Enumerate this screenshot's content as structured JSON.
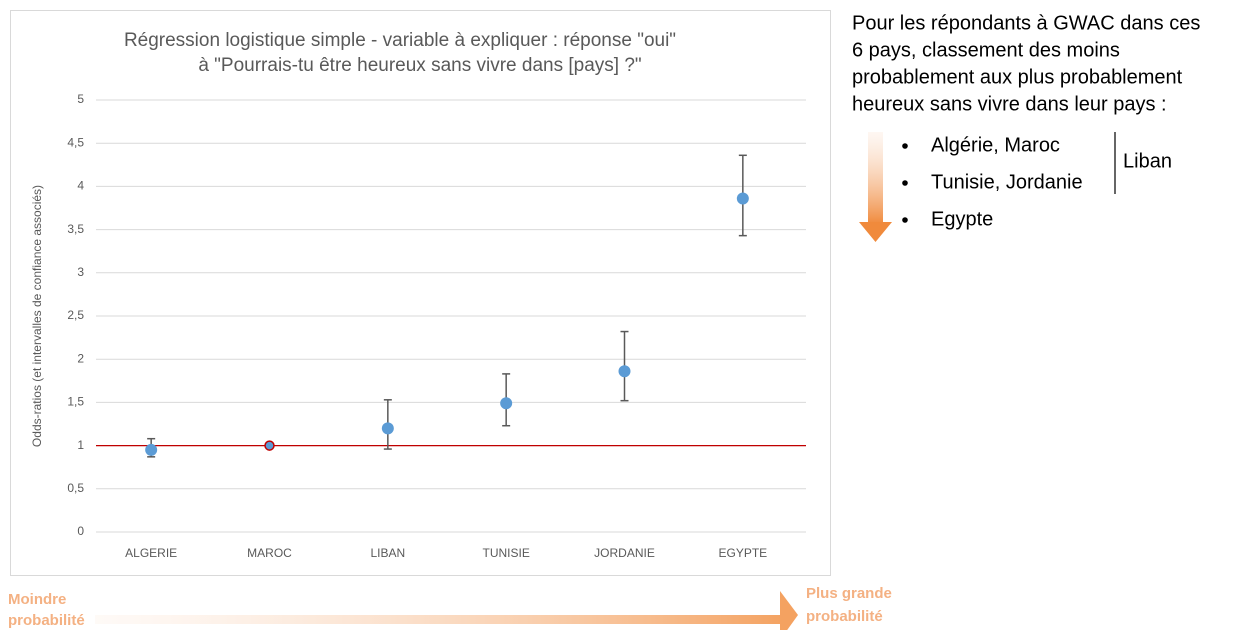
{
  "chart_data": {
    "type": "errorbar",
    "title": [
      "Régression logistique simple - variable à expliquer : réponse \"oui\"",
      "à \"Pourrais-tu être heureux sans vivre dans [pays] ?\""
    ],
    "y_label": "Odds-ratios (et intervalles de confiance associés)",
    "categories": [
      "ALGERIE",
      "MAROC",
      "LIBAN",
      "TUNISIE",
      "JORDANIE",
      "EGYPTE"
    ],
    "values": [
      0.95,
      1,
      1.2,
      1.49,
      1.86,
      3.86
    ],
    "lower": [
      0.87,
      null,
      0.96,
      1.23,
      1.52,
      3.43
    ],
    "upper": [
      1.08,
      null,
      1.53,
      1.83,
      2.32,
      4.36
    ],
    "color": "#5b9bd5",
    "error_color": "#595959",
    "reference_line": 1,
    "reference_index": 1,
    "reference_color": "#c00000",
    "ylim": [
      0,
      5
    ],
    "yticks": [
      0,
      {
        "value": 0.5,
        "label": "0,5"
      },
      1,
      {
        "value": 1.5,
        "label": "1,5"
      },
      2,
      {
        "value": 2.5,
        "label": "2,5"
      },
      3,
      {
        "value": 3.5,
        "label": "3,5"
      },
      4,
      {
        "value": 4.5,
        "label": "4,5"
      },
      5
    ],
    "grid": true,
    "annotations": {
      "intro": [
        "Pour les répondants à GWAC dans ces",
        "6 pays, classement des moins",
        "probablement aux plus probablement",
        "heureux sans vivre dans leur pays :"
      ],
      "ranking": [
        "Algérie, Maroc",
        "Tunisie, Jordanie",
        "Egypte"
      ],
      "bracket_label": "Liban",
      "arrow_left": [
        "Moindre",
        "probabilité"
      ],
      "arrow_right": [
        "Plus grande",
        "probabilité"
      ]
    }
  }
}
